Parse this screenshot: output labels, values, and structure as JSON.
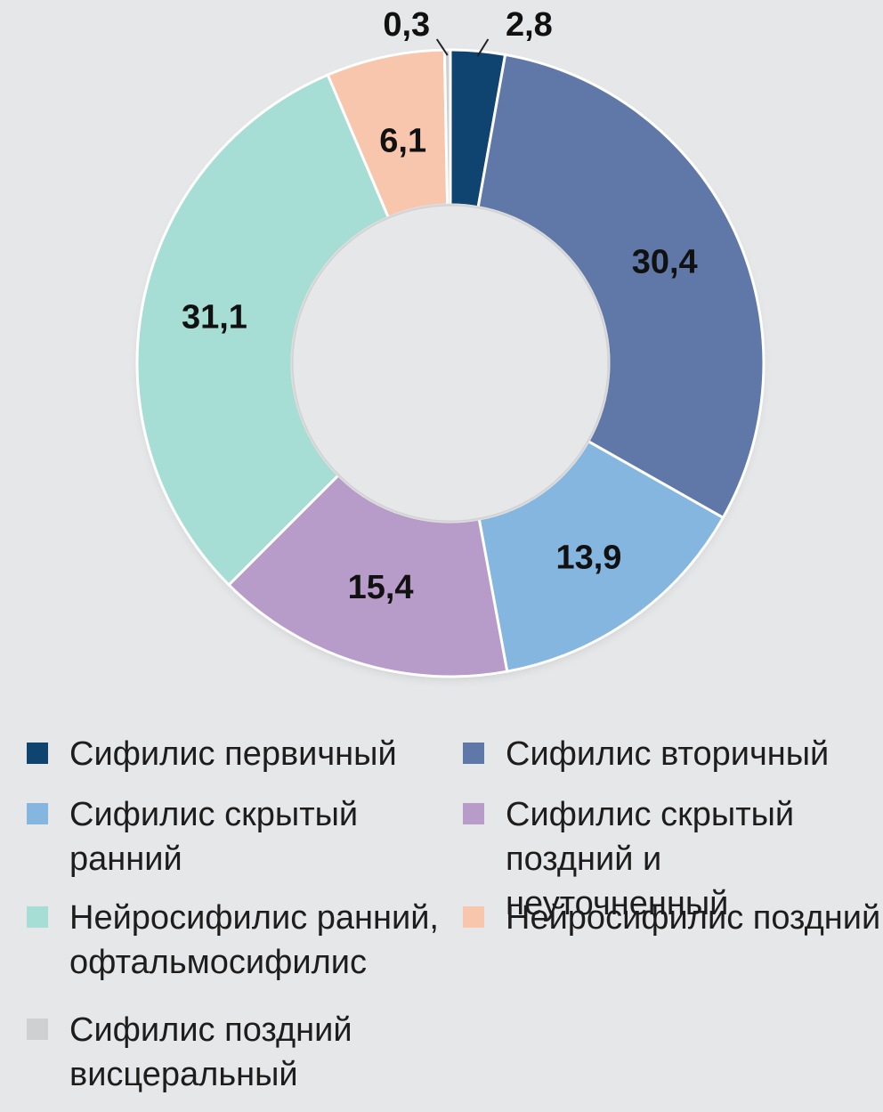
{
  "chart_data": {
    "type": "pie",
    "donut": true,
    "categories": [
      "Сифилис первичный",
      "Сифилис вторичный",
      "Сифилис скрытый ранний",
      "Сифилис скрытый поздний и неуточненный",
      "Нейросифилис ранний, офтальмосифилис",
      "Нейросифилис поздний",
      "Сифилис поздний висцеральный"
    ],
    "values": [
      2.8,
      30.4,
      13.9,
      15.4,
      31.1,
      6.1,
      0.3
    ],
    "value_labels": [
      "2,8",
      "30,4",
      "13,9",
      "15,4",
      "31,1",
      "6,1",
      "0,3"
    ],
    "colors": [
      "#0f4470",
      "#5f78a8",
      "#84b6e0",
      "#b79bc8",
      "#a6ddd4",
      "#f8c6ad",
      "#cfd0d2"
    ],
    "legend_position": "bottom"
  },
  "legend": [
    {
      "label": "Сифилис первичный",
      "color": "#0f4470"
    },
    {
      "label": "Сифилис вторичный",
      "color": "#5f78a8"
    },
    {
      "label": "Сифилис скрытый\nранний",
      "color": "#84b6e0"
    },
    {
      "label": "Сифилис скрытый\nпоздний и неуточненный",
      "color": "#b79bc8"
    },
    {
      "label": "Нейросифилис ранний,\nофтальмосифилис",
      "color": "#a6ddd4"
    },
    {
      "label": "Нейросифилис поздний",
      "color": "#f8c6ad"
    },
    {
      "label": "Сифилис поздний\nвисцеральный",
      "color": "#cfd0d2"
    }
  ]
}
